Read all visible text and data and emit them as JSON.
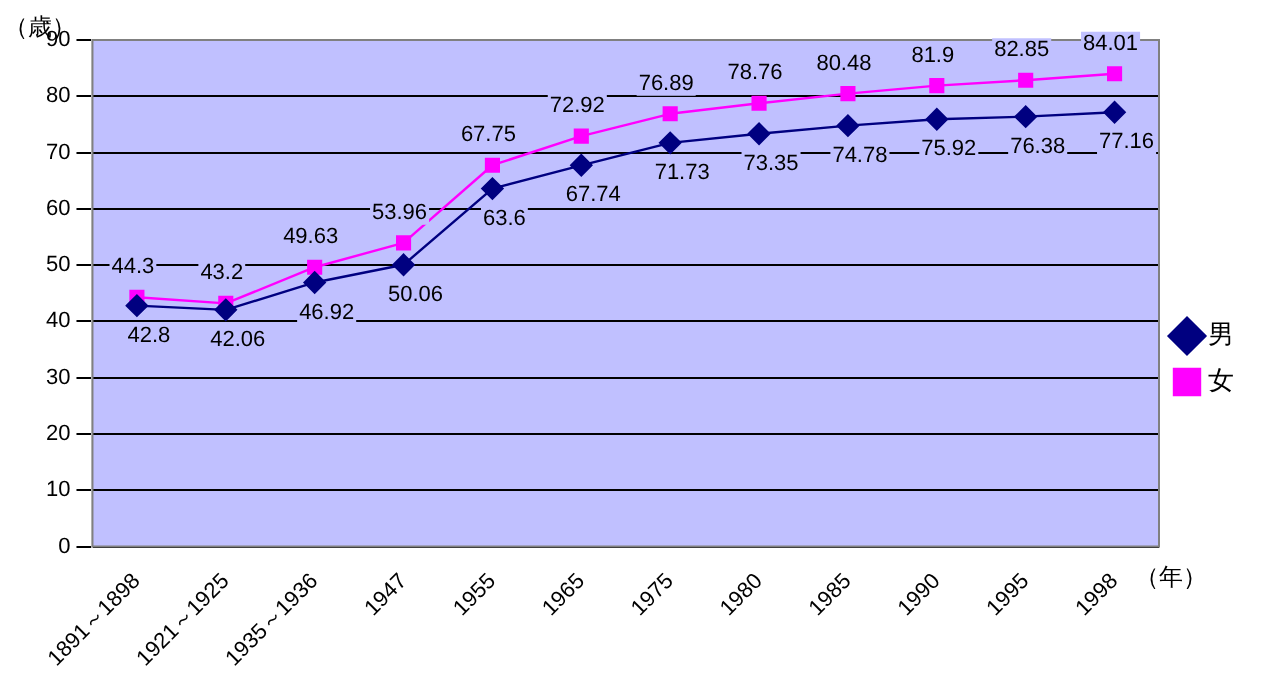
{
  "chart_data": {
    "type": "line",
    "ylabel": "（歳）",
    "xlabel": "（年）",
    "categories": [
      "1891～1898",
      "1921～1925",
      "1935～1936",
      "1947",
      "1955",
      "1965",
      "1975",
      "1980",
      "1985",
      "1990",
      "1995",
      "1998"
    ],
    "series": [
      {
        "name": "男",
        "color": "#000080",
        "marker": "diamond",
        "values": [
          42.8,
          42.06,
          46.92,
          50.06,
          63.6,
          67.74,
          71.73,
          73.35,
          74.78,
          75.92,
          76.38,
          77.16
        ]
      },
      {
        "name": "女",
        "color": "#ff00ff",
        "marker": "square",
        "values": [
          44.3,
          43.2,
          49.63,
          53.96,
          67.75,
          72.92,
          76.89,
          78.76,
          80.48,
          81.9,
          82.85,
          84.01
        ]
      }
    ],
    "ylim": [
      0,
      90
    ],
    "yticks": [
      0,
      10,
      20,
      30,
      40,
      50,
      60,
      70,
      80,
      90
    ],
    "grid": "y",
    "legend": "right",
    "data_labels": true,
    "line_style": "solid"
  }
}
